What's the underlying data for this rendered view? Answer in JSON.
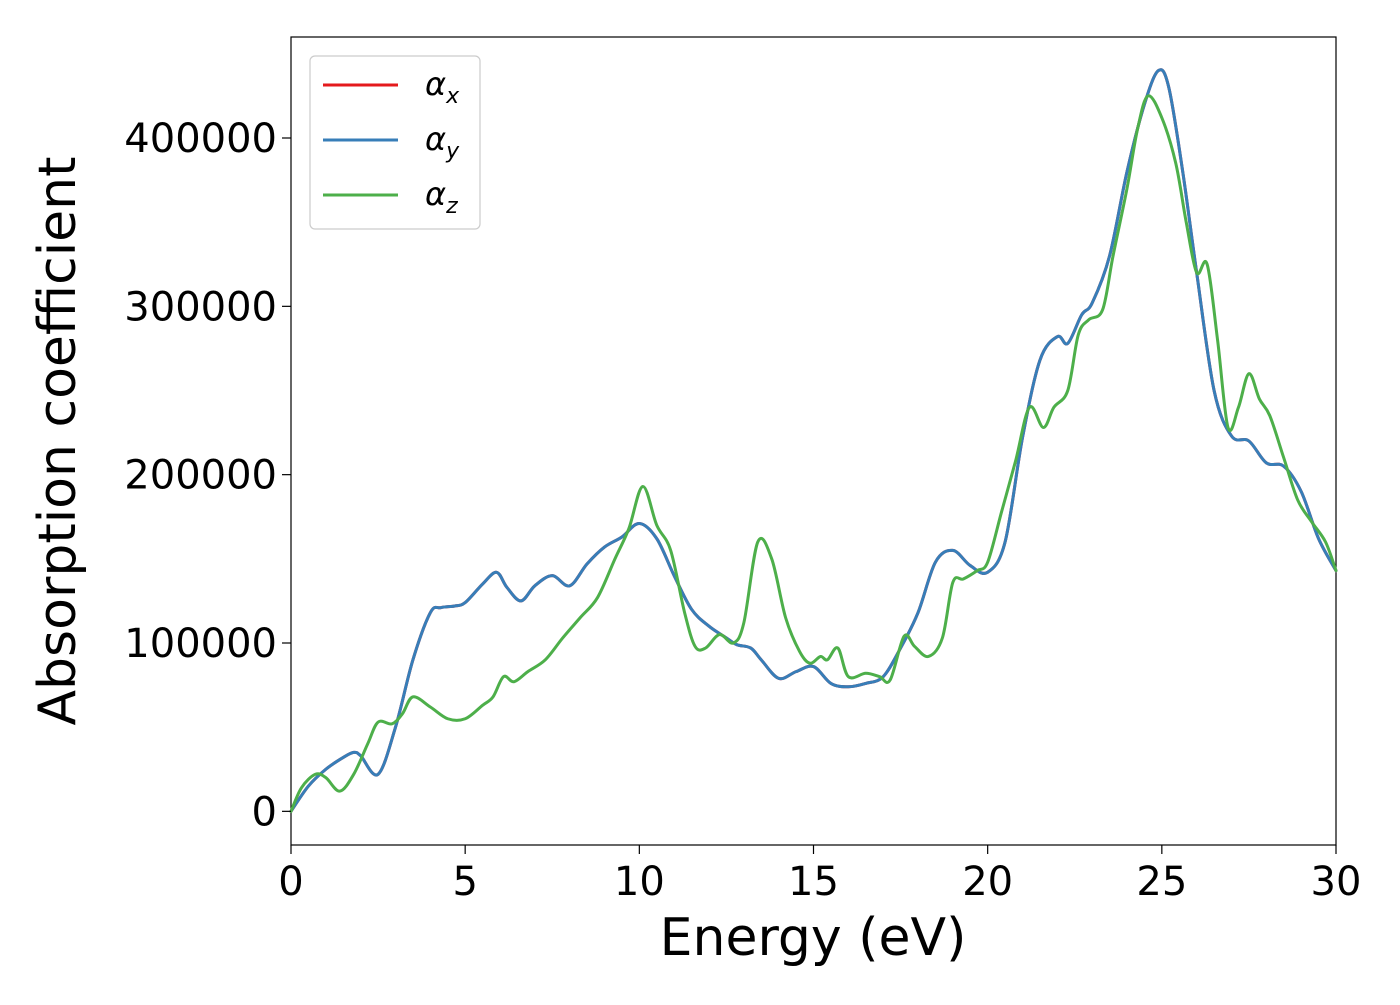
{
  "chart_data": {
    "type": "line",
    "title": "",
    "xlabel": "Energy (eV)",
    "ylabel": "Absorption coefficient",
    "xlim": [
      0,
      30
    ],
    "ylim": [
      -20000,
      460000
    ],
    "xticks": [
      0,
      5,
      10,
      15,
      20,
      25,
      30
    ],
    "yticks": [
      0,
      100000,
      200000,
      300000,
      400000
    ],
    "grid": false,
    "legend_position": "top-left",
    "series": [
      {
        "name": "α_x",
        "legend_main": "α",
        "legend_sub": "x",
        "color": "#e41a1c",
        "x": [
          0,
          0.5,
          1.0,
          1.5,
          1.8,
          2.0,
          2.5,
          3.0,
          3.5,
          4.0,
          4.3,
          4.7,
          5.0,
          5.5,
          5.9,
          6.2,
          6.6,
          7.0,
          7.5,
          8.0,
          8.5,
          9.0,
          9.5,
          10.0,
          10.5,
          11.0,
          11.5,
          12.0,
          12.5,
          12.8,
          13.2,
          13.5,
          14.0,
          14.5,
          15.0,
          15.5,
          16.0,
          16.5,
          17.0,
          17.5,
          18.0,
          18.5,
          19.0,
          19.5,
          20.0,
          20.5,
          21.0,
          21.5,
          22.0,
          22.3,
          22.7,
          23.0,
          23.5,
          24.0,
          24.5,
          24.9,
          25.2,
          25.6,
          26.0,
          26.5,
          27.0,
          27.5,
          28.0,
          28.5,
          29.0,
          29.5,
          30.0
        ],
        "y": [
          0,
          15000,
          25000,
          32000,
          35000,
          33000,
          22000,
          50000,
          90000,
          118000,
          121000,
          122000,
          124000,
          135000,
          142000,
          133000,
          125000,
          134000,
          140000,
          134000,
          147000,
          157000,
          163000,
          171000,
          162000,
          140000,
          120000,
          110000,
          103000,
          99000,
          97000,
          90000,
          79000,
          83000,
          86000,
          76000,
          74000,
          76000,
          80000,
          97000,
          118000,
          148000,
          155000,
          146000,
          142000,
          160000,
          222000,
          268000,
          282000,
          278000,
          295000,
          302000,
          330000,
          380000,
          420000,
          440000,
          430000,
          380000,
          320000,
          250000,
          223000,
          220000,
          207000,
          205000,
          190000,
          162000,
          143000
        ]
      },
      {
        "name": "α_y",
        "legend_main": "α",
        "legend_sub": "y",
        "color": "#377eb8",
        "x": [
          0,
          0.5,
          1.0,
          1.5,
          1.8,
          2.0,
          2.5,
          3.0,
          3.5,
          4.0,
          4.3,
          4.7,
          5.0,
          5.5,
          5.9,
          6.2,
          6.6,
          7.0,
          7.5,
          8.0,
          8.5,
          9.0,
          9.5,
          10.0,
          10.5,
          11.0,
          11.5,
          12.0,
          12.5,
          12.8,
          13.2,
          13.5,
          14.0,
          14.5,
          15.0,
          15.5,
          16.0,
          16.5,
          17.0,
          17.5,
          18.0,
          18.5,
          19.0,
          19.5,
          20.0,
          20.5,
          21.0,
          21.5,
          22.0,
          22.3,
          22.7,
          23.0,
          23.5,
          24.0,
          24.5,
          24.9,
          25.2,
          25.6,
          26.0,
          26.5,
          27.0,
          27.5,
          28.0,
          28.5,
          29.0,
          29.5,
          30.0
        ],
        "y": [
          0,
          15000,
          25000,
          32000,
          35000,
          33000,
          22000,
          50000,
          90000,
          118000,
          121000,
          122000,
          124000,
          135000,
          142000,
          133000,
          125000,
          134000,
          140000,
          134000,
          147000,
          157000,
          163000,
          171000,
          162000,
          140000,
          120000,
          110000,
          103000,
          99000,
          97000,
          90000,
          79000,
          83000,
          86000,
          76000,
          74000,
          76000,
          80000,
          97000,
          118000,
          148000,
          155000,
          146000,
          142000,
          160000,
          222000,
          268000,
          282000,
          278000,
          295000,
          302000,
          330000,
          380000,
          420000,
          440000,
          430000,
          380000,
          320000,
          250000,
          223000,
          220000,
          207000,
          205000,
          190000,
          162000,
          143000
        ]
      },
      {
        "name": "α_z",
        "legend_main": "α",
        "legend_sub": "z",
        "color": "#4daf4a",
        "x": [
          0,
          0.3,
          0.7,
          1.0,
          1.4,
          1.8,
          2.2,
          2.5,
          2.9,
          3.2,
          3.5,
          4.0,
          4.5,
          5.0,
          5.5,
          5.8,
          6.1,
          6.4,
          6.8,
          7.3,
          7.8,
          8.3,
          8.8,
          9.3,
          9.7,
          10.1,
          10.5,
          10.9,
          11.3,
          11.6,
          11.9,
          12.3,
          12.7,
          13.0,
          13.4,
          13.8,
          14.2,
          14.6,
          14.9,
          15.2,
          15.4,
          15.7,
          16.0,
          16.5,
          16.9,
          17.2,
          17.6,
          17.9,
          18.3,
          18.7,
          19.0,
          19.3,
          19.7,
          20.0,
          20.4,
          20.8,
          21.2,
          21.6,
          21.9,
          22.3,
          22.6,
          22.9,
          23.3,
          23.6,
          24.0,
          24.3,
          24.6,
          25.0,
          25.4,
          25.7,
          26.0,
          26.3,
          26.6,
          26.9,
          27.2,
          27.5,
          27.8,
          28.1,
          28.5,
          28.9,
          29.3,
          29.7,
          30.0
        ],
        "y": [
          0,
          14000,
          22000,
          20000,
          12000,
          22000,
          40000,
          53000,
          52000,
          58000,
          68000,
          62000,
          55000,
          55000,
          63000,
          68000,
          80000,
          77000,
          83000,
          90000,
          103000,
          115000,
          127000,
          150000,
          168000,
          193000,
          170000,
          155000,
          118000,
          98000,
          97000,
          105000,
          100000,
          112000,
          160000,
          150000,
          115000,
          95000,
          88000,
          92000,
          90000,
          97000,
          80000,
          82000,
          80000,
          78000,
          104000,
          98000,
          92000,
          103000,
          136000,
          138000,
          143000,
          148000,
          178000,
          208000,
          240000,
          228000,
          240000,
          250000,
          283000,
          292000,
          298000,
          330000,
          370000,
          405000,
          425000,
          412000,
          385000,
          350000,
          320000,
          325000,
          280000,
          228000,
          240000,
          260000,
          245000,
          235000,
          210000,
          185000,
          172000,
          160000,
          143000
        ]
      }
    ]
  }
}
